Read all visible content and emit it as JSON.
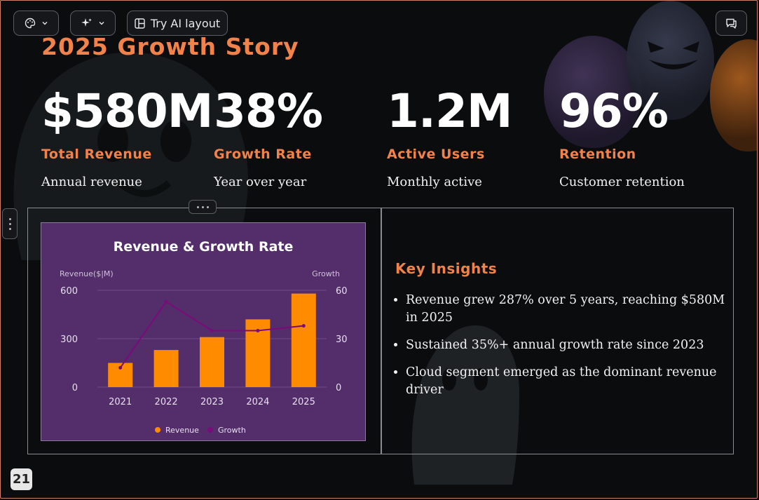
{
  "toolbar": {
    "theme_icon": "palette-icon",
    "ai_icon": "sparkle-icon",
    "ai_layout_label": "Try AI layout",
    "comment_icon": "comment-icon"
  },
  "slide": {
    "title": "2025 Growth Story",
    "stats": [
      {
        "value": "$580M",
        "label": "Total Revenue",
        "sub": "Annual revenue"
      },
      {
        "value": "38%",
        "label": "Growth Rate",
        "sub": "Year over year"
      },
      {
        "value": "1.2M",
        "label": "Active Users",
        "sub": "Monthly active"
      },
      {
        "value": "96%",
        "label": "Retention",
        "sub": "Customer retention"
      }
    ],
    "insights_title": "Key Insights",
    "insights": [
      "Revenue grew 287% over 5 years, reaching $580M in 2025",
      "Sustained 35%+ annual growth rate since 2023",
      "Cloud segment emerged as the dominant revenue driver"
    ],
    "page_number": "21"
  },
  "chart_data": {
    "type": "bar",
    "title": "Revenue & Growth Rate",
    "categories": [
      "2021",
      "2022",
      "2023",
      "2024",
      "2025"
    ],
    "ylabel": "Revenue($|M)",
    "y2label": "Growth",
    "ylim": [
      0,
      600
    ],
    "y2lim": [
      0,
      60
    ],
    "yticks": [
      "600",
      "300",
      "0"
    ],
    "y2ticks": [
      "60",
      "30",
      "0"
    ],
    "legend_position": "bottom",
    "colors": {
      "revenue": "#ff8c00",
      "growth": "#7b0a7b",
      "background": "#542d6b"
    },
    "series": [
      {
        "name": "Revenue",
        "type": "bar",
        "axis": "left",
        "values": [
          150,
          230,
          310,
          420,
          580
        ]
      },
      {
        "name": "Growth",
        "type": "line",
        "axis": "right",
        "values": [
          12,
          53,
          35,
          35,
          38
        ]
      }
    ]
  }
}
